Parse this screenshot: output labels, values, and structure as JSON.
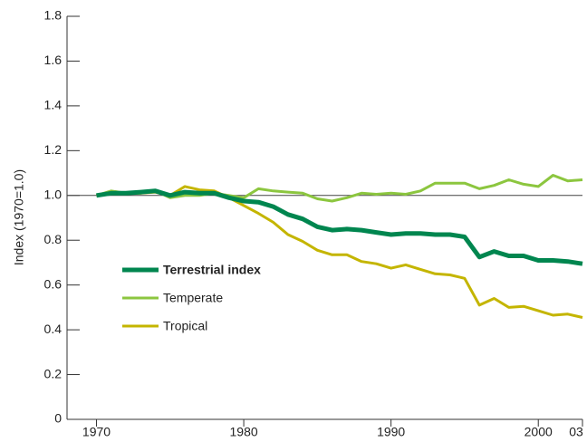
{
  "chart_data": {
    "type": "line",
    "y_label": "Index (1970=1.0)",
    "x": [
      1970,
      1971,
      1972,
      1973,
      1974,
      1975,
      1976,
      1977,
      1978,
      1979,
      1980,
      1981,
      1982,
      1983,
      1984,
      1985,
      1986,
      1987,
      1988,
      1989,
      1990,
      1991,
      1992,
      1993,
      1994,
      1995,
      1996,
      1997,
      1998,
      1999,
      2000,
      2001,
      2002,
      2003
    ],
    "series": [
      {
        "name": "Terrestrial index",
        "color": "#00864f",
        "width": 5,
        "bold": true,
        "values": [
          1.0,
          1.01,
          1.01,
          1.015,
          1.02,
          1.0,
          1.015,
          1.01,
          1.01,
          0.99,
          0.975,
          0.97,
          0.95,
          0.915,
          0.895,
          0.86,
          0.845,
          0.85,
          0.845,
          0.835,
          0.825,
          0.83,
          0.83,
          0.825,
          0.825,
          0.815,
          0.725,
          0.75,
          0.73,
          0.73,
          0.71,
          0.71,
          0.705,
          0.695
        ]
      },
      {
        "name": "Temperate",
        "color": "#8cc63f",
        "width": 3,
        "bold": false,
        "values": [
          1.0,
          1.02,
          1.01,
          1.01,
          1.02,
          0.99,
          1.0,
          1.0,
          1.01,
          1.0,
          0.99,
          1.03,
          1.02,
          1.015,
          1.01,
          0.985,
          0.975,
          0.99,
          1.01,
          1.005,
          1.01,
          1.005,
          1.02,
          1.055,
          1.055,
          1.055,
          1.03,
          1.045,
          1.07,
          1.05,
          1.04,
          1.09,
          1.065,
          1.07
        ]
      },
      {
        "name": "Tropical",
        "color": "#c4b500",
        "width": 3,
        "bold": false,
        "values": [
          1.0,
          1.015,
          1.01,
          1.01,
          1.015,
          1.0,
          1.04,
          1.025,
          1.02,
          0.99,
          0.955,
          0.92,
          0.88,
          0.825,
          0.795,
          0.755,
          0.735,
          0.735,
          0.705,
          0.695,
          0.675,
          0.69,
          0.67,
          0.65,
          0.645,
          0.63,
          0.51,
          0.54,
          0.5,
          0.505,
          0.485,
          0.465,
          0.47,
          0.455
        ]
      }
    ],
    "xlim": [
      1968,
      2003
    ],
    "xticks": [
      1970,
      1980,
      1990,
      2000,
      {
        "value": 2003,
        "label": "03"
      }
    ],
    "ylim": [
      0,
      1.8
    ],
    "yticks": [
      0,
      0.2,
      0.4,
      0.6,
      0.8,
      {
        "value": 1,
        "label": "1.0"
      },
      1.2,
      1.4,
      1.6,
      1.8
    ],
    "hline": 1,
    "legend": "left"
  }
}
